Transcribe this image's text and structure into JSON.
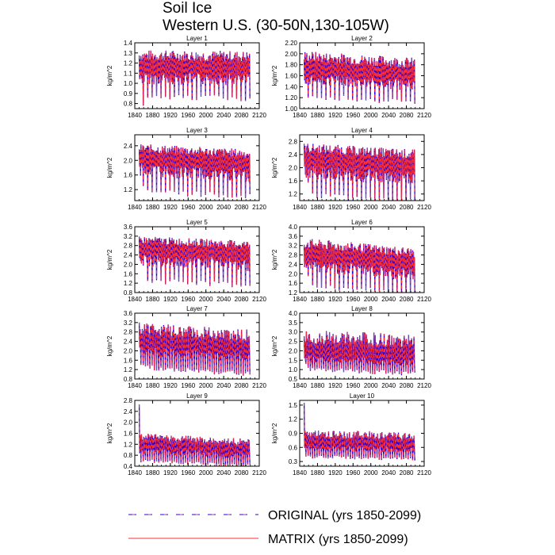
{
  "title": {
    "line1": "Soil Ice",
    "line2": "Western U.S. (30-50N,130-105W)"
  },
  "legend": {
    "original": "ORIGINAL (yrs 1850-2099)",
    "matrix": "MATRIX (yrs 1850-2099)"
  },
  "colors": {
    "original": "#2a00d8",
    "matrix": "#ff3030",
    "axis": "#000000"
  },
  "chart_data": [
    {
      "type": "line",
      "title": "Layer 1",
      "ylabel": "kg/m^2",
      "xlim": [
        1840,
        2120
      ],
      "ylim": [
        0.75,
        1.4
      ],
      "xticks": [
        "1840",
        "1880",
        "1920",
        "1960",
        "2000",
        "2040",
        "2080",
        "2120"
      ],
      "yticks": [
        "0.8",
        "0.9",
        "1.0",
        "1.1",
        "1.2",
        "1.3",
        "1.4"
      ],
      "series": [
        {
          "name": "ORIGINAL",
          "x_start": 1850,
          "x_end": 2099,
          "period": 10,
          "base": 1.15,
          "hi": 1.33,
          "lo": 0.86,
          "trend": -0.01,
          "first_lo": 0.78
        },
        {
          "name": "MATRIX",
          "x_start": 1850,
          "x_end": 2099,
          "period": 10,
          "base": 1.15,
          "hi": 1.33,
          "lo": 0.86,
          "trend": -0.01,
          "first_lo": 0.78
        }
      ]
    },
    {
      "type": "line",
      "title": "Layer 2",
      "ylabel": "kg/m^2",
      "xlim": [
        1840,
        2120
      ],
      "ylim": [
        1.0,
        2.2
      ],
      "xticks": [
        "1840",
        "1880",
        "1920",
        "1960",
        "2000",
        "2040",
        "2080",
        "2120"
      ],
      "yticks": [
        "1.00",
        "1.20",
        "1.40",
        "1.60",
        "1.80",
        "2.00",
        "2.20"
      ],
      "series": [
        {
          "name": "ORIGINAL",
          "x_start": 1850,
          "x_end": 2099,
          "period": 10,
          "base": 1.72,
          "hi": 2.05,
          "lo": 1.22,
          "trend": -0.12,
          "first_lo": 1.2
        },
        {
          "name": "MATRIX",
          "x_start": 1850,
          "x_end": 2099,
          "period": 10,
          "base": 1.72,
          "hi": 2.05,
          "lo": 1.22,
          "trend": -0.12,
          "first_lo": 1.2
        }
      ]
    },
    {
      "type": "line",
      "title": "Layer 3",
      "ylabel": "kg/m^2",
      "xlim": [
        1840,
        2120
      ],
      "ylim": [
        0.9,
        2.7
      ],
      "xticks": [
        "1840",
        "1880",
        "1920",
        "1960",
        "2000",
        "2040",
        "2080",
        "2120"
      ],
      "yticks": [
        "1.2",
        "1.6",
        "2.0",
        "2.4"
      ],
      "series": [
        {
          "name": "ORIGINAL",
          "x_start": 1850,
          "x_end": 2099,
          "period": 10,
          "base": 2.05,
          "hi": 2.45,
          "lo": 1.15,
          "trend": -0.15,
          "first_lo": 1.3
        },
        {
          "name": "MATRIX",
          "x_start": 1850,
          "x_end": 2099,
          "period": 10,
          "base": 2.05,
          "hi": 2.45,
          "lo": 1.15,
          "trend": -0.15,
          "first_lo": 1.3
        }
      ]
    },
    {
      "type": "line",
      "title": "Layer 4",
      "ylabel": "kg/m^2",
      "xlim": [
        1840,
        2120
      ],
      "ylim": [
        1.0,
        3.0
      ],
      "xticks": [
        "1840",
        "1880",
        "1920",
        "1960",
        "2000",
        "2040",
        "2080",
        "2120"
      ],
      "yticks": [
        "1.2",
        "1.6",
        "2.0",
        "2.4",
        "2.8"
      ],
      "series": [
        {
          "name": "ORIGINAL",
          "x_start": 1850,
          "x_end": 2099,
          "period": 10,
          "base": 2.25,
          "hi": 2.75,
          "lo": 1.15,
          "trend": -0.2,
          "first_lo": 1.55
        },
        {
          "name": "MATRIX",
          "x_start": 1850,
          "x_end": 2099,
          "period": 10,
          "base": 2.25,
          "hi": 2.75,
          "lo": 1.15,
          "trend": -0.2,
          "first_lo": 1.55
        }
      ]
    },
    {
      "type": "line",
      "title": "Layer 5",
      "ylabel": "kg/m^2",
      "xlim": [
        1840,
        2120
      ],
      "ylim": [
        0.8,
        3.6
      ],
      "xticks": [
        "1840",
        "1880",
        "1920",
        "1960",
        "2000",
        "2040",
        "2080",
        "2120"
      ],
      "yticks": [
        "0.8",
        "1.2",
        "1.6",
        "2.0",
        "2.4",
        "2.8",
        "3.2",
        "3.6"
      ],
      "series": [
        {
          "name": "ORIGINAL",
          "x_start": 1850,
          "x_end": 2099,
          "period": 10,
          "base": 2.65,
          "hi": 3.2,
          "lo": 1.3,
          "trend": -0.2,
          "first_lo": 1.95
        },
        {
          "name": "MATRIX",
          "x_start": 1850,
          "x_end": 2099,
          "period": 10,
          "base": 2.65,
          "hi": 3.2,
          "lo": 1.3,
          "trend": -0.2,
          "first_lo": 1.95
        }
      ]
    },
    {
      "type": "line",
      "title": "Layer 6",
      "ylabel": "kg/m^2",
      "xlim": [
        1840,
        2120
      ],
      "ylim": [
        1.2,
        4.0
      ],
      "xticks": [
        "1840",
        "1880",
        "1920",
        "1960",
        "2000",
        "2040",
        "2080",
        "2120"
      ],
      "yticks": [
        "1.2",
        "1.6",
        "2.0",
        "2.4",
        "2.8",
        "3.2",
        "3.6",
        "4.0"
      ],
      "series": [
        {
          "name": "ORIGINAL",
          "x_start": 1850,
          "x_end": 2099,
          "period": 10,
          "base": 2.8,
          "hi": 3.5,
          "lo": 1.5,
          "trend": -0.4,
          "first_lo": 1.9
        },
        {
          "name": "MATRIX",
          "x_start": 1850,
          "x_end": 2099,
          "period": 10,
          "base": 2.8,
          "hi": 3.5,
          "lo": 1.5,
          "trend": -0.4,
          "first_lo": 1.9
        }
      ]
    },
    {
      "type": "line",
      "title": "Layer 7",
      "ylabel": "kg/m^2",
      "xlim": [
        1840,
        2120
      ],
      "ylim": [
        0.8,
        3.6
      ],
      "xticks": [
        "1840",
        "1880",
        "1920",
        "1960",
        "2000",
        "2040",
        "2080",
        "2120"
      ],
      "yticks": [
        "0.8",
        "1.2",
        "1.6",
        "2.0",
        "2.4",
        "2.8",
        "3.2",
        "3.6"
      ],
      "series": [
        {
          "name": "ORIGINAL",
          "x_start": 1850,
          "x_end": 2099,
          "period": 5,
          "base": 2.4,
          "hi": 3.2,
          "lo": 1.3,
          "trend": -0.3,
          "first_lo": 1.4
        },
        {
          "name": "MATRIX",
          "x_start": 1850,
          "x_end": 2099,
          "period": 5,
          "base": 2.4,
          "hi": 3.2,
          "lo": 1.3,
          "trend": -0.3,
          "first_lo": 1.4
        }
      ]
    },
    {
      "type": "line",
      "title": "Layer 8",
      "ylabel": "kg/m^2",
      "xlim": [
        1840,
        2120
      ],
      "ylim": [
        0.5,
        4.0
      ],
      "xticks": [
        "1840",
        "1880",
        "1920",
        "1960",
        "2000",
        "2040",
        "2080",
        "2120"
      ],
      "yticks": [
        "0.5",
        "1.0",
        "1.5",
        "2.0",
        "2.5",
        "3.0",
        "3.5",
        "4.0"
      ],
      "series": [
        {
          "name": "ORIGINAL",
          "x_start": 1850,
          "x_end": 2099,
          "period": 5,
          "base": 1.9,
          "hi": 3.1,
          "lo": 1.0,
          "trend": -0.2,
          "first_lo": 1.3
        },
        {
          "name": "MATRIX",
          "x_start": 1850,
          "x_end": 2099,
          "period": 5,
          "base": 1.9,
          "hi": 3.1,
          "lo": 1.0,
          "trend": -0.2,
          "first_lo": 1.3
        }
      ]
    },
    {
      "type": "line",
      "title": "Layer 9",
      "ylabel": "kg/m^2",
      "xlim": [
        1840,
        2120
      ],
      "ylim": [
        0.4,
        2.8
      ],
      "xticks": [
        "1840",
        "1880",
        "1920",
        "1960",
        "2000",
        "2040",
        "2080",
        "2120"
      ],
      "yticks": [
        "0.4",
        "0.8",
        "1.2",
        "1.6",
        "2.0",
        "2.4",
        "2.8"
      ],
      "series": [
        {
          "name": "ORIGINAL",
          "x_start": 1850,
          "x_end": 2099,
          "period": 5,
          "base": 1.2,
          "hi": 1.6,
          "lo": 0.6,
          "trend": -0.2,
          "first_hi": 2.65
        },
        {
          "name": "MATRIX",
          "x_start": 1850,
          "x_end": 2099,
          "period": 5,
          "base": 1.2,
          "hi": 1.6,
          "lo": 0.6,
          "trend": -0.2,
          "first_hi": 2.65
        }
      ]
    },
    {
      "type": "line",
      "title": "Layer 10",
      "ylabel": "kg/m^2",
      "xlim": [
        1840,
        2120
      ],
      "ylim": [
        0.2,
        1.6
      ],
      "xticks": [
        "1840",
        "1880",
        "1920",
        "1960",
        "2000",
        "2040",
        "2080",
        "2120"
      ],
      "yticks": [
        "0.3",
        "0.6",
        "0.9",
        "1.2",
        "1.5"
      ],
      "series": [
        {
          "name": "ORIGINAL",
          "x_start": 1850,
          "x_end": 2099,
          "period": 5,
          "base": 0.7,
          "hi": 0.98,
          "lo": 0.4,
          "trend": -0.05,
          "first_hi": 1.55
        },
        {
          "name": "MATRIX",
          "x_start": 1850,
          "x_end": 2099,
          "period": 5,
          "base": 0.7,
          "hi": 0.98,
          "lo": 0.4,
          "trend": -0.05,
          "first_hi": 1.55
        }
      ]
    }
  ]
}
